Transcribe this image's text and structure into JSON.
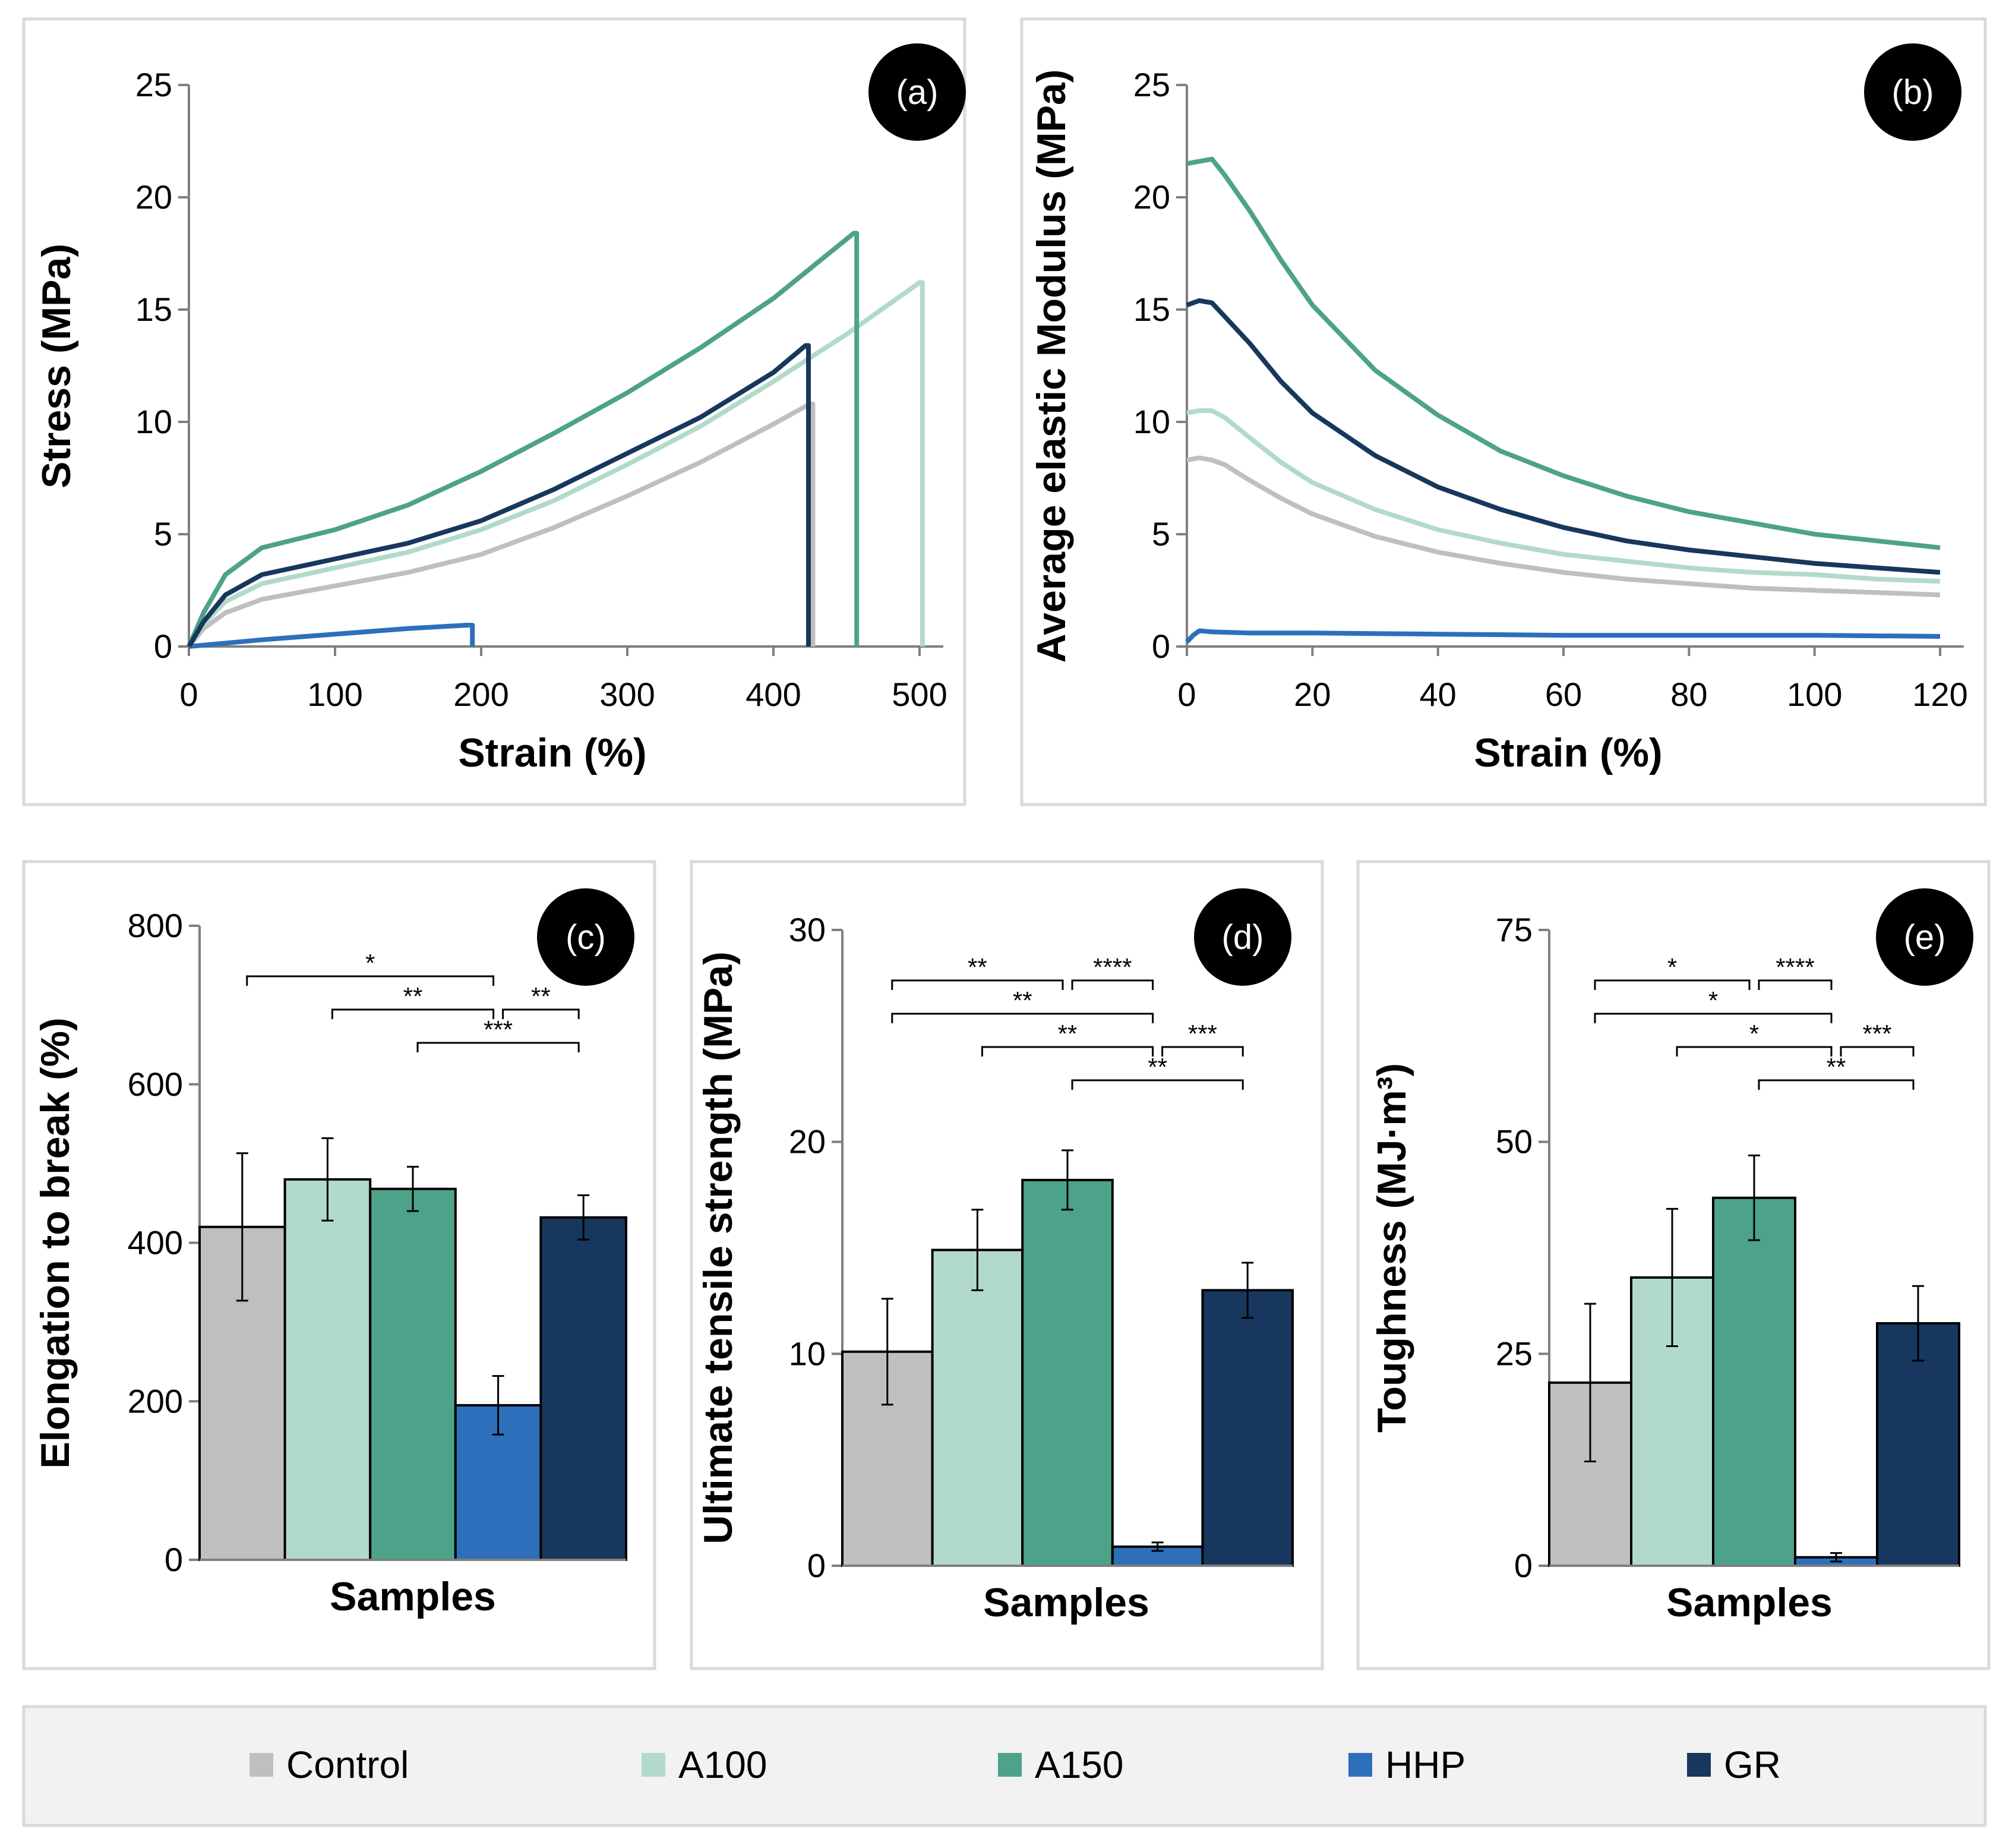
{
  "legend": [
    "Control",
    "A100",
    "A150",
    "HHP",
    "GR"
  ],
  "colors": {
    "Control": "#BFBFBF",
    "A100": "#B2DACB",
    "A150": "#4DA28A",
    "HHP": "#2E6FBC",
    "GR": "#17375E"
  },
  "chart_data": [
    {
      "panel": "(a)",
      "type": "line",
      "xlabel": "Strain (%)",
      "ylabel": "Stress (MPa)",
      "xlim": [
        0,
        500
      ],
      "ylim": [
        0,
        25
      ],
      "xticks": [
        0,
        100,
        200,
        300,
        400,
        500
      ],
      "yticks": [
        0,
        5,
        10,
        15,
        20,
        25
      ],
      "series": [
        {
          "name": "Control",
          "x": [
            0,
            10,
            25,
            50,
            100,
            150,
            200,
            250,
            300,
            350,
            400,
            425,
            427,
            427
          ],
          "y": [
            0,
            0.8,
            1.5,
            2.1,
            2.7,
            3.3,
            4.1,
            5.3,
            6.7,
            8.2,
            9.9,
            10.8,
            10.8,
            0
          ]
        },
        {
          "name": "A100",
          "x": [
            0,
            10,
            25,
            50,
            100,
            150,
            200,
            250,
            300,
            350,
            400,
            450,
            500,
            502,
            502
          ],
          "y": [
            0,
            1.0,
            2.0,
            2.8,
            3.5,
            4.2,
            5.2,
            6.5,
            8.1,
            9.8,
            11.8,
            13.9,
            16.2,
            16.2,
            0
          ]
        },
        {
          "name": "A150",
          "x": [
            0,
            10,
            25,
            50,
            100,
            150,
            200,
            250,
            300,
            350,
            400,
            455,
            457,
            457
          ],
          "y": [
            0,
            1.5,
            3.2,
            4.4,
            5.2,
            6.3,
            7.8,
            9.5,
            11.3,
            13.3,
            15.5,
            18.4,
            18.4,
            0
          ]
        },
        {
          "name": "HHP",
          "x": [
            0,
            50,
            100,
            150,
            190,
            194,
            194
          ],
          "y": [
            0,
            0.3,
            0.55,
            0.8,
            0.95,
            0.95,
            0
          ]
        },
        {
          "name": "GR",
          "x": [
            0,
            10,
            25,
            50,
            100,
            150,
            200,
            250,
            300,
            350,
            400,
            422,
            424,
            424
          ],
          "y": [
            0,
            1.1,
            2.3,
            3.2,
            3.9,
            4.6,
            5.6,
            7.0,
            8.6,
            10.2,
            12.2,
            13.4,
            13.4,
            0
          ]
        }
      ]
    },
    {
      "panel": "(b)",
      "type": "line",
      "xlabel": "Strain (%)",
      "ylabel": "Average elastic Modulus (MPa)",
      "xlim": [
        0,
        120
      ],
      "ylim": [
        0,
        25
      ],
      "xticks": [
        0,
        20,
        40,
        60,
        80,
        100,
        120
      ],
      "yticks": [
        0,
        5,
        10,
        15,
        20,
        25
      ],
      "series": [
        {
          "name": "Control",
          "x": [
            0,
            2,
            4,
            6,
            10,
            15,
            20,
            30,
            40,
            50,
            60,
            70,
            80,
            90,
            100,
            110,
            120
          ],
          "y": [
            8.3,
            8.4,
            8.3,
            8.1,
            7.4,
            6.6,
            5.9,
            4.9,
            4.2,
            3.7,
            3.3,
            3.0,
            2.8,
            2.6,
            2.5,
            2.4,
            2.3
          ]
        },
        {
          "name": "A100",
          "x": [
            0,
            2,
            4,
            6,
            10,
            15,
            20,
            30,
            40,
            50,
            60,
            70,
            80,
            90,
            100,
            110,
            120
          ],
          "y": [
            10.4,
            10.5,
            10.5,
            10.2,
            9.3,
            8.2,
            7.3,
            6.1,
            5.2,
            4.6,
            4.1,
            3.8,
            3.5,
            3.3,
            3.2,
            3.0,
            2.9
          ]
        },
        {
          "name": "A150",
          "x": [
            0,
            2,
            4,
            6,
            10,
            15,
            20,
            30,
            40,
            50,
            60,
            70,
            80,
            90,
            100,
            110,
            120
          ],
          "y": [
            21.5,
            21.6,
            21.7,
            21.0,
            19.4,
            17.2,
            15.2,
            12.3,
            10.3,
            8.7,
            7.6,
            6.7,
            6.0,
            5.5,
            5.0,
            4.7,
            4.4
          ]
        },
        {
          "name": "HHP",
          "x": [
            0,
            1,
            2,
            4,
            10,
            20,
            40,
            60,
            80,
            100,
            120
          ],
          "y": [
            0.2,
            0.5,
            0.7,
            0.65,
            0.6,
            0.6,
            0.55,
            0.5,
            0.5,
            0.5,
            0.45
          ]
        },
        {
          "name": "GR",
          "x": [
            0,
            2,
            4,
            6,
            10,
            15,
            20,
            30,
            40,
            50,
            60,
            70,
            80,
            90,
            100,
            110,
            120
          ],
          "y": [
            15.2,
            15.4,
            15.3,
            14.7,
            13.5,
            11.8,
            10.4,
            8.5,
            7.1,
            6.1,
            5.3,
            4.7,
            4.3,
            4.0,
            3.7,
            3.5,
            3.3
          ]
        }
      ]
    },
    {
      "panel": "(c)",
      "type": "bar",
      "xlabel": "Samples",
      "ylabel": "Elongation to break (%)",
      "ylim": [
        0,
        800
      ],
      "yticks": [
        0,
        200,
        400,
        600,
        800
      ],
      "categories": [
        "Control",
        "A100",
        "A150",
        "HHP",
        "GR"
      ],
      "values": [
        420,
        480,
        468,
        195,
        432
      ],
      "errors": [
        93,
        52,
        28,
        37,
        28
      ],
      "significance": [
        {
          "from": 0,
          "to": 3,
          "label": "*",
          "level": 0
        },
        {
          "from": 1,
          "to": 3,
          "label": "**",
          "level": 1
        },
        {
          "from": 3,
          "to": 4,
          "label": "**",
          "level": 1
        },
        {
          "from": 2,
          "to": 4,
          "label": "***",
          "level": 2
        }
      ]
    },
    {
      "panel": "(d)",
      "type": "bar",
      "xlabel": "Samples",
      "ylabel": "Ultimate tensile strength (MPa)",
      "ylim": [
        0,
        30
      ],
      "yticks": [
        0,
        10,
        20,
        30
      ],
      "categories": [
        "Control",
        "A100",
        "A150",
        "HHP",
        "GR"
      ],
      "values": [
        10.1,
        14.9,
        18.2,
        0.9,
        13.0
      ],
      "errors": [
        2.5,
        1.9,
        1.4,
        0.2,
        1.3
      ],
      "significance": [
        {
          "from": 0,
          "to": 2,
          "label": "**",
          "level": 0
        },
        {
          "from": 2,
          "to": 3,
          "label": "****",
          "level": 0
        },
        {
          "from": 0,
          "to": 3,
          "label": "**",
          "level": 1
        },
        {
          "from": 1,
          "to": 3,
          "label": "**",
          "level": 2
        },
        {
          "from": 3,
          "to": 4,
          "label": "***",
          "level": 2
        },
        {
          "from": 2,
          "to": 4,
          "label": "**",
          "level": 3
        }
      ]
    },
    {
      "panel": "(e)",
      "type": "bar",
      "xlabel": "Samples",
      "ylabel": "Toughness (MJ·m³)",
      "ylim": [
        0,
        75
      ],
      "yticks": [
        0,
        25,
        50,
        75
      ],
      "categories": [
        "Control",
        "A100",
        "A150",
        "HHP",
        "GR"
      ],
      "values": [
        21.6,
        34.0,
        43.4,
        1.0,
        28.6
      ],
      "errors": [
        9.3,
        8.1,
        5.0,
        0.5,
        4.4
      ],
      "significance": [
        {
          "from": 0,
          "to": 2,
          "label": "*",
          "level": 0
        },
        {
          "from": 2,
          "to": 3,
          "label": "****",
          "level": 0
        },
        {
          "from": 0,
          "to": 3,
          "label": "*",
          "level": 1
        },
        {
          "from": 1,
          "to": 3,
          "label": "*",
          "level": 2
        },
        {
          "from": 3,
          "to": 4,
          "label": "***",
          "level": 2
        },
        {
          "from": 2,
          "to": 4,
          "label": "**",
          "level": 3
        }
      ]
    }
  ]
}
